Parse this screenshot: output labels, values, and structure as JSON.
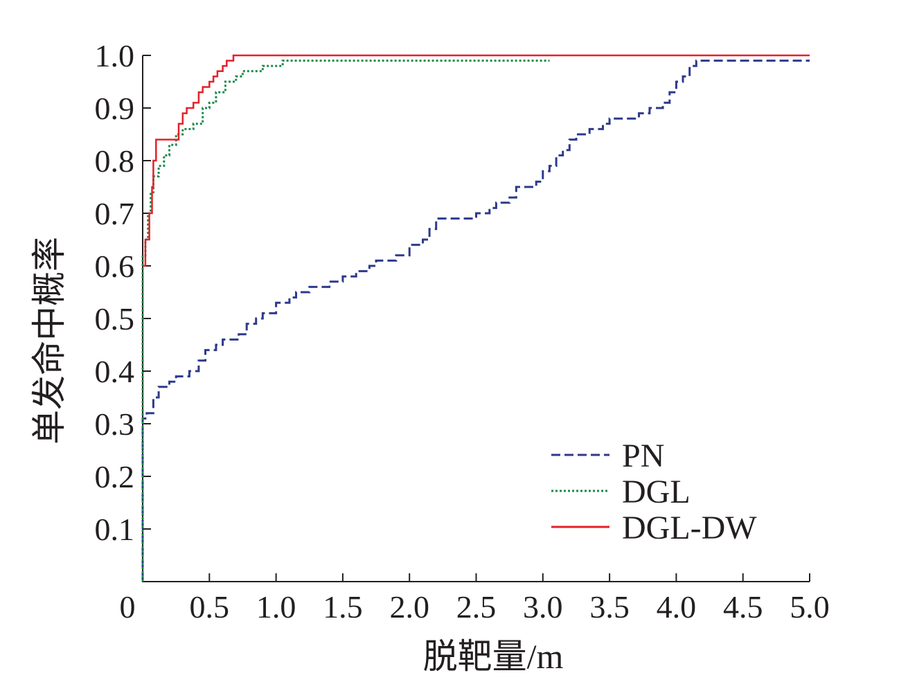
{
  "chart_data": {
    "type": "line",
    "title": "",
    "xlabel": "脱靶量/m",
    "ylabel": "单发命中概率",
    "xlim": [
      0,
      5.0
    ],
    "ylim": [
      0,
      1.0
    ],
    "x_ticks": [
      "0",
      "0.5",
      "1.0",
      "1.5",
      "2.0",
      "2.5",
      "3.0",
      "3.5",
      "4.0",
      "4.5",
      "5.0"
    ],
    "y_ticks": [
      "0.1",
      "0.2",
      "0.3",
      "0.4",
      "0.5",
      "0.6",
      "0.7",
      "0.8",
      "0.9",
      "1.0"
    ],
    "grid": false,
    "legend_position": "bottom-right",
    "series": [
      {
        "name": "PN",
        "color": "#2e3a8c",
        "style": "dashed",
        "points": [
          [
            0,
            0
          ],
          [
            0,
            0.31
          ],
          [
            0.03,
            0.32
          ],
          [
            0.08,
            0.35
          ],
          [
            0.12,
            0.37
          ],
          [
            0.2,
            0.38
          ],
          [
            0.25,
            0.39
          ],
          [
            0.35,
            0.4
          ],
          [
            0.42,
            0.42
          ],
          [
            0.47,
            0.44
          ],
          [
            0.55,
            0.45
          ],
          [
            0.6,
            0.46
          ],
          [
            0.72,
            0.47
          ],
          [
            0.78,
            0.49
          ],
          [
            0.85,
            0.5
          ],
          [
            0.9,
            0.51
          ],
          [
            1.0,
            0.53
          ],
          [
            1.1,
            0.54
          ],
          [
            1.15,
            0.55
          ],
          [
            1.25,
            0.56
          ],
          [
            1.4,
            0.57
          ],
          [
            1.5,
            0.58
          ],
          [
            1.6,
            0.59
          ],
          [
            1.7,
            0.6
          ],
          [
            1.75,
            0.61
          ],
          [
            1.9,
            0.62
          ],
          [
            2.0,
            0.64
          ],
          [
            2.1,
            0.65
          ],
          [
            2.15,
            0.67
          ],
          [
            2.2,
            0.69
          ],
          [
            2.5,
            0.7
          ],
          [
            2.6,
            0.71
          ],
          [
            2.65,
            0.72
          ],
          [
            2.75,
            0.73
          ],
          [
            2.8,
            0.75
          ],
          [
            2.95,
            0.76
          ],
          [
            3.0,
            0.78
          ],
          [
            3.05,
            0.79
          ],
          [
            3.1,
            0.81
          ],
          [
            3.15,
            0.82
          ],
          [
            3.2,
            0.84
          ],
          [
            3.25,
            0.85
          ],
          [
            3.35,
            0.86
          ],
          [
            3.45,
            0.87
          ],
          [
            3.5,
            0.88
          ],
          [
            3.72,
            0.89
          ],
          [
            3.8,
            0.9
          ],
          [
            3.9,
            0.91
          ],
          [
            3.95,
            0.93
          ],
          [
            4.0,
            0.95
          ],
          [
            4.05,
            0.96
          ],
          [
            4.1,
            0.98
          ],
          [
            4.15,
            0.99
          ],
          [
            5.0,
            0.99
          ]
        ]
      },
      {
        "name": "DGL",
        "color": "#1a8a4a",
        "style": "dotted",
        "points": [
          [
            0,
            0
          ],
          [
            0,
            0.62
          ],
          [
            0.02,
            0.65
          ],
          [
            0.04,
            0.7
          ],
          [
            0.06,
            0.74
          ],
          [
            0.08,
            0.77
          ],
          [
            0.12,
            0.79
          ],
          [
            0.16,
            0.81
          ],
          [
            0.2,
            0.83
          ],
          [
            0.25,
            0.85
          ],
          [
            0.3,
            0.86
          ],
          [
            0.38,
            0.87
          ],
          [
            0.45,
            0.9
          ],
          [
            0.5,
            0.91
          ],
          [
            0.55,
            0.93
          ],
          [
            0.62,
            0.95
          ],
          [
            0.7,
            0.96
          ],
          [
            0.75,
            0.97
          ],
          [
            0.9,
            0.98
          ],
          [
            1.05,
            0.99
          ],
          [
            3.05,
            0.99
          ]
        ]
      },
      {
        "name": "DGL-DW",
        "color": "#e32128",
        "style": "solid",
        "points": [
          [
            0,
            0.6
          ],
          [
            0.02,
            0.65
          ],
          [
            0.05,
            0.7
          ],
          [
            0.07,
            0.75
          ],
          [
            0.08,
            0.8
          ],
          [
            0.1,
            0.84
          ],
          [
            0.22,
            0.84
          ],
          [
            0.27,
            0.87
          ],
          [
            0.3,
            0.89
          ],
          [
            0.33,
            0.9
          ],
          [
            0.38,
            0.91
          ],
          [
            0.42,
            0.93
          ],
          [
            0.45,
            0.94
          ],
          [
            0.5,
            0.95
          ],
          [
            0.53,
            0.96
          ],
          [
            0.56,
            0.97
          ],
          [
            0.6,
            0.98
          ],
          [
            0.63,
            0.99
          ],
          [
            0.68,
            1.0
          ],
          [
            5.0,
            1.0
          ]
        ]
      }
    ]
  }
}
